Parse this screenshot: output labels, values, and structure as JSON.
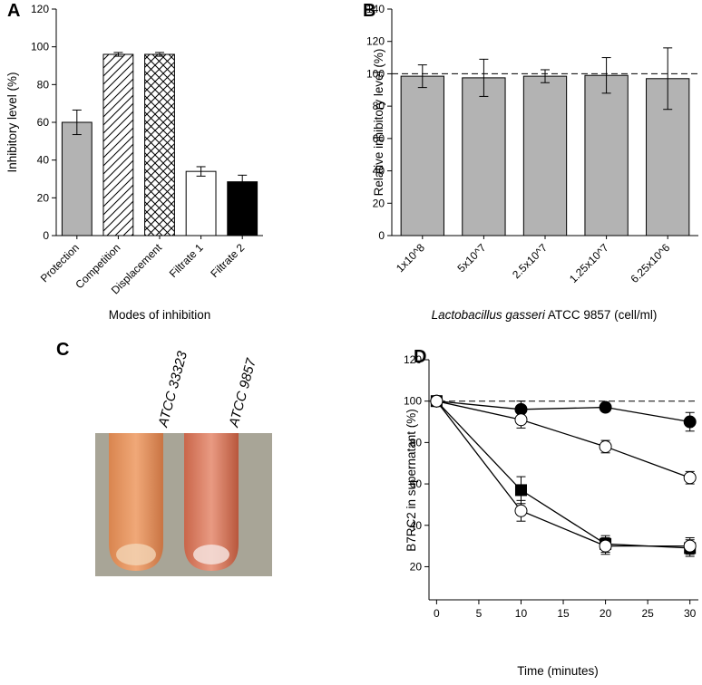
{
  "chart_data": [
    {
      "type": "bar",
      "panel_label": "A",
      "ylabel": "Inhibitory level (%)",
      "xlabel": "Modes of inhibition",
      "categories": [
        "Protection",
        "Competition",
        "Displacement",
        "Filtrate 1",
        "Filtrate 2"
      ],
      "values": [
        60,
        96,
        96,
        34,
        28.5
      ],
      "errors": [
        6.5,
        1,
        1,
        2.5,
        3.5
      ],
      "fills": [
        "#b3b3b3",
        "#ffffff",
        "#ffffff",
        "#ffffff",
        "#000000"
      ],
      "patterns": [
        "solid",
        "diagonal",
        "crosshatch",
        "solid",
        "solid"
      ],
      "ylim": [
        0,
        120
      ],
      "yticks": [
        0,
        20,
        40,
        60,
        80,
        100,
        120
      ]
    },
    {
      "type": "bar",
      "panel_label": "B",
      "ylabel": "Relative inhibitory level (%)",
      "xlabel": [
        "Lactobacillus gasseri",
        "ATCC 9857 (cell/ml)"
      ],
      "categories": [
        "1x10^8",
        "5x10^7",
        "2.5x10^7",
        "1.25x10^7",
        "6.25x10^6"
      ],
      "values": [
        98.5,
        97.5,
        98.5,
        99,
        97
      ],
      "errors": [
        7,
        11.5,
        4,
        11,
        19
      ],
      "fills": [
        "#b3b3b3",
        "#b3b3b3",
        "#b3b3b3",
        "#b3b3b3",
        "#b3b3b3"
      ],
      "patterns": [
        "solid",
        "solid",
        "solid",
        "solid",
        "solid"
      ],
      "reference_line": 100,
      "ylim": [
        0,
        140
      ],
      "yticks": [
        0,
        20,
        40,
        60,
        80,
        100,
        120,
        140
      ]
    },
    {
      "type": "image",
      "panel_label": "C",
      "labels": [
        "ATCC 33323",
        "ATCC 9857"
      ]
    },
    {
      "type": "line",
      "panel_label": "D",
      "ylabel": "B7RC2 in supernatant (%)",
      "xlabel": "Time (minutes)",
      "x": [
        0,
        10,
        20,
        30
      ],
      "xlim": [
        -0.9,
        31
      ],
      "xticks": [
        0,
        5,
        10,
        15,
        20,
        25,
        30
      ],
      "ylim": [
        4,
        120
      ],
      "yticks": [
        20,
        40,
        60,
        80,
        100,
        120
      ],
      "reference_line": 100,
      "series": [
        {
          "marker": "circle",
          "color": "#000000",
          "fill": "#000000",
          "values": [
            100,
            96,
            97,
            90
          ],
          "errors": [
            0,
            4,
            1,
            4.5
          ]
        },
        {
          "marker": "circle",
          "color": "#000000",
          "fill": "#ffffff",
          "values": [
            100,
            91,
            78,
            63
          ],
          "errors": [
            0,
            4,
            3,
            3
          ]
        },
        {
          "marker": "square",
          "color": "#000000",
          "fill": "#000000",
          "values": [
            100,
            57,
            31,
            29
          ],
          "errors": [
            0,
            6.5,
            4,
            4
          ]
        },
        {
          "marker": "circle",
          "color": "#000000",
          "fill": "#ffffff",
          "values": [
            100,
            47,
            30,
            30
          ],
          "errors": [
            0,
            5,
            4,
            4
          ]
        }
      ]
    }
  ]
}
